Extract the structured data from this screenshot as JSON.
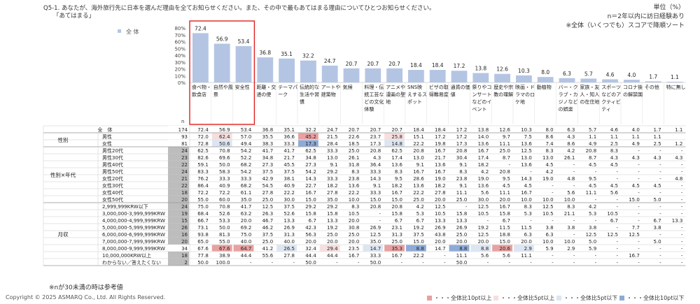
{
  "question": "Q5-1. あなたが、海外旅行先に日本を選んだ理由を全てお知らせください。また、その中で最もあてはまる理由についてひとつお知らせください。",
  "question_sub": "「あてはまる」",
  "note_lines": [
    "単位（%）",
    "n＝2年以内に訪日経験あり",
    "※全体（いくつでも）スコアで降順ソート"
  ],
  "footnote": "※nが30未満の時は参考値",
  "copyright": "Copyright © 2025 ASMARQ Co., Ltd. All Rights Reserved.",
  "legend": [
    {
      "label": "・・・全体比10pt以上",
      "color": "#e8a0a0"
    },
    {
      "label": "・・・全体比5pt以上",
      "color": "#f7dede"
    },
    {
      "label": "・・・全体比5pt以下",
      "color": "#dce6f2"
    },
    {
      "label": "・・・全体比10pt以下",
      "color": "#8eaad6"
    }
  ],
  "n_label": "n",
  "chart_data": {
    "type": "bar",
    "legend_label": "全 体",
    "yticks": [
      "80%",
      "70%",
      "60%",
      "50%",
      "40%",
      "30%",
      "20%",
      "10%",
      "0%"
    ],
    "ylim": [
      0,
      80
    ],
    "categories": [
      "食べ物・飲食店",
      "自然や風景",
      "安全性",
      "距離・交通の便",
      "テーマパーク",
      "伝統的な生活や習慣",
      "アートや建築物",
      "気候",
      "料理・伝統工芸などの文化体験",
      "アニメや漫画の聖地",
      "SNS映えするスポット",
      "ビザの取得難易度",
      "通貨の価値",
      "祭りやコンサートなどのイベント",
      "歴史や宗教の理解",
      "映画・ドラマのロケ地",
      "動植物",
      "バー・クラブ・カジノなどの娯楽",
      "家族・友人・知人の在住地",
      "スポーツなどのアクティビティ",
      "コロナ後の解禁国",
      "その他",
      "特に無し"
    ],
    "values": [
      72.4,
      56.9,
      53.4,
      36.8,
      35.1,
      32.2,
      24.7,
      20.7,
      20.7,
      20.7,
      18.4,
      18.4,
      17.2,
      13.8,
      12.6,
      10.3,
      8.0,
      6.3,
      5.7,
      4.6,
      4.0,
      1.7,
      1.1
    ],
    "highlighted_top": 3
  },
  "table": {
    "total_label": "全　体",
    "total_n": "174",
    "total_values": [
      "72.4",
      "56.9",
      "53.4",
      "36.8",
      "35.1",
      "32.2",
      "24.7",
      "20.7",
      "20.7",
      "20.7",
      "18.4",
      "18.4",
      "17.2",
      "13.8",
      "12.6",
      "10.3",
      "8.0",
      "6.3",
      "5.7",
      "4.6",
      "4.0",
      "1.7",
      "1.1"
    ],
    "groups": [
      {
        "label": "性別",
        "rows": [
          {
            "label": "男性",
            "n": "93",
            "values": [
              "72.0",
              "62.4",
              "57.0",
              "35.5",
              "36.6",
              "45.2",
              "21.5",
              "22.6",
              "23.7",
              "25.8",
              "15.1",
              "17.2",
              "17.2",
              "14.0",
              "9.7",
              "7.5",
              "8.6",
              "4.3",
              "1.1",
              "1.1",
              "1.1",
              "1.1",
              ""
            ],
            "shade": [
              "",
              "p",
              "",
              "",
              "",
              "r",
              "",
              "",
              "",
              "p",
              "",
              "",
              "",
              "",
              "",
              "",
              "",
              "",
              "",
              "",
              "",
              "",
              ""
            ]
          },
          {
            "label": "女性",
            "n": "81",
            "values": [
              "72.8",
              "50.6",
              "49.4",
              "38.3",
              "33.3",
              "17.3",
              "28.4",
              "18.5",
              "17.3",
              "14.8",
              "22.2",
              "19.8",
              "17.3",
              "13.6",
              "11.1",
              "13.6",
              "7.4",
              "8.6",
              "4.9",
              "2.5",
              "4.9",
              "2.5",
              "1.2"
            ],
            "shade": [
              "",
              "l",
              "",
              "",
              "",
              "b",
              "",
              "",
              "",
              "l",
              "",
              "",
              "",
              "",
              "",
              "",
              "",
              "",
              "",
              "",
              "",
              "",
              ""
            ]
          }
        ]
      },
      {
        "label": "性別×年代",
        "rows": [
          {
            "label": "男性20代",
            "n": "24",
            "values": [
              "62.5",
              "70.8",
              "54.2",
              "41.7",
              "41.7",
              "62.5",
              "33.3",
              "25.0",
              "20.8",
              "62.5",
              "20.8",
              "16.7",
              "20.8",
              "16.7",
              "25.0",
              "12.5",
              "8.3",
              "4.2",
              "20.8",
              "8.3",
              "-",
              "-",
              "-"
            ]
          },
          {
            "label": "男性30代",
            "n": "23",
            "values": [
              "82.6",
              "69.6",
              "52.2",
              "34.8",
              "21.7",
              "34.8",
              "13.0",
              "26.1",
              "4.3",
              "17.4",
              "13.0",
              "21.7",
              "30.4",
              "17.4",
              "8.7",
              "13.0",
              "13.0",
              "26.1",
              "8.7",
              "4.3",
              "4.3",
              "4.3",
              "4.3"
            ]
          },
          {
            "label": "男性40代",
            "n": "22",
            "values": [
              "59.1",
              "50.0",
              "68.2",
              "27.3",
              "45.5",
              "27.3",
              "9.1",
              "31.8",
              "36.4",
              "13.6",
              "9.1",
              "13.6",
              "9.1",
              "18.2",
              "-",
              "13.6",
              "4.5",
              "-",
              "4.5",
              "4.5",
              "-",
              "-",
              "-"
            ]
          },
          {
            "label": "男性50代",
            "n": "24",
            "values": [
              "83.3",
              "58.3",
              "54.2",
              "37.5",
              "37.5",
              "54.2",
              "29.2",
              "8.3",
              "33.3",
              "8.3",
              "16.7",
              "16.7",
              "8.3",
              "4.2",
              "20.8",
              "-",
              "4.2",
              "-",
              "-",
              "-",
              "-",
              "-",
              "-"
            ]
          },
          {
            "label": "女性20代",
            "n": "21",
            "values": [
              "76.2",
              "33.3",
              "33.3",
              "42.9",
              "38.1",
              "14.3",
              "33.3",
              "23.8",
              "14.3",
              "9.5",
              "28.6",
              "19.0",
              "23.8",
              "19.0",
              "9.5",
              "14.3",
              "19.0",
              "4.8",
              "9.5",
              "-",
              "-",
              "-",
              "4.8"
            ]
          },
          {
            "label": "女性30代",
            "n": "22",
            "values": [
              "86.4",
              "40.9",
              "68.2",
              "54.5",
              "40.9",
              "22.7",
              "18.2",
              "13.6",
              "9.1",
              "18.2",
              "13.6",
              "18.2",
              "9.1",
              "13.6",
              "4.5",
              "4.5",
              "-",
              "-",
              "4.5",
              "4.5",
              "4.5",
              "4.5",
              "-"
            ]
          },
          {
            "label": "女性40代",
            "n": "18",
            "values": [
              "72.2",
              "72.2",
              "61.1",
              "27.8",
              "22.2",
              "16.7",
              "27.8",
              "22.2",
              "33.3",
              "16.7",
              "22.2",
              "27.8",
              "11.1",
              "5.6",
              "11.1",
              "16.7",
              "-",
              "5.6",
              "11.1",
              "5.6",
              "-",
              "-",
              "-"
            ]
          },
          {
            "label": "女性50代",
            "n": "20",
            "values": [
              "55.0",
              "60.0",
              "35.0",
              "25.0",
              "30.0",
              "15.0",
              "35.0",
              "10.0",
              "15.0",
              "15.0",
              "25.0",
              "20.0",
              "25.0",
              "30.0",
              "20.0",
              "10.0",
              "10.0",
              "10.0",
              "-",
              "-",
              "15.0",
              "5.0",
              "-"
            ]
          }
        ]
      },
      {
        "label": "月収",
        "rows": [
          {
            "label": "2,999,999KRW以下",
            "n": "24",
            "values": [
              "75.0",
              "70.8",
              "41.7",
              "12.5",
              "37.5",
              "29.2",
              "29.2",
              "8.3",
              "20.8",
              "20.8",
              "4.2",
              "12.5",
              "-",
              "12.5",
              "16.7",
              "8.3",
              "12.5",
              "8.3",
              "4.2",
              "-",
              "-",
              "-",
              "-"
            ]
          },
          {
            "label": "3,000,000-3,999,999KRW",
            "n": "19",
            "values": [
              "68.4",
              "52.6",
              "63.2",
              "26.3",
              "52.6",
              "15.8",
              "15.8",
              "10.5",
              "-",
              "15.8",
              "5.3",
              "10.5",
              "15.8",
              "10.5",
              "15.8",
              "5.3",
              "10.5",
              "21.1",
              "5.3",
              "10.5",
              "-",
              "-",
              "-"
            ]
          },
          {
            "label": "4,000,000-4,999,999KRW",
            "n": "15",
            "values": [
              "66.7",
              "53.3",
              "20.0",
              "46.7",
              "13.3",
              "6.7",
              "13.3",
              "20.0",
              "-",
              "6.7",
              "6.7",
              "13.3",
              "13.3",
              "-",
              "6.7",
              "-",
              "-",
              "-",
              "-",
              "6.7",
              "-",
              "6.7",
              "13.3"
            ]
          },
          {
            "label": "5,000,000-5,999,999KRW",
            "n": "26",
            "values": [
              "73.1",
              "50.0",
              "69.2",
              "46.2",
              "26.9",
              "42.3",
              "19.2",
              "30.8",
              "26.9",
              "23.1",
              "19.2",
              "26.9",
              "26.9",
              "19.2",
              "11.5",
              "11.5",
              "3.8",
              "3.8",
              "3.8",
              "-",
              "7.7",
              "3.8",
              "-"
            ]
          },
          {
            "label": "6,000,000-6,999,999KRW",
            "n": "16",
            "values": [
              "93.8",
              "81.3",
              "75.0",
              "37.5",
              "31.3",
              "56.3",
              "25.0",
              "25.0",
              "12.5",
              "31.3",
              "37.5",
              "43.8",
              "25.0",
              "12.5",
              "18.8",
              "6.3",
              "6.3",
              "-",
              "12.5",
              "12.5",
              "12.5",
              "-",
              "-"
            ]
          },
          {
            "label": "7,000,000-7,999,999KRW",
            "n": "20",
            "values": [
              "65.0",
              "55.0",
              "40.0",
              "25.0",
              "40.0",
              "20.0",
              "20.0",
              "20.0",
              "35.0",
              "25.0",
              "15.0",
              "20.0",
              "20.0",
              "20.0",
              "15.0",
              "20.0",
              "10.0",
              "10.0",
              "5.0",
              "-",
              "-",
              "5.0",
              "-"
            ]
          },
          {
            "label": "8,000,000-9,999,999KRW",
            "n": "34",
            "values": [
              "67.6",
              "67.6",
              "64.7",
              "41.2",
              "26.5",
              "32.4",
              "29.4",
              "23.5",
              "14.7",
              "35.3",
              "8.8",
              "14.7",
              "8.8",
              "8.8",
              "20.6",
              "2.9",
              "5.9",
              "2.9",
              "5.9",
              "-",
              "-",
              "-",
              "-"
            ],
            "shade": [
              "",
              "r",
              "r",
              "",
              "l",
              "",
              "p",
              "",
              "l",
              "r",
              "b",
              "",
              "b",
              "l",
              "r",
              "l",
              "",
              "",
              "",
              "",
              "",
              "",
              ""
            ]
          },
          {
            "label": "10,000,000KRW以上",
            "n": "18",
            "values": [
              "77.8",
              "38.9",
              "44.4",
              "55.6",
              "27.8",
              "44.4",
              "44.4",
              "16.7",
              "33.3",
              "16.7",
              "22.2",
              "-",
              "11.1",
              "5.6",
              "5.6",
              "11.1",
              "-",
              "-",
              "-",
              "-",
              "16.7",
              "-",
              "-"
            ]
          },
          {
            "label": "わからない／答えたくない",
            "n": "2",
            "values": [
              "50.0",
              "100.0",
              "-",
              "-",
              "-",
              "50.0",
              "-",
              "-",
              "50.0",
              "-",
              "-",
              "-",
              "50.0",
              "-",
              "-",
              "-",
              "-",
              "-",
              "-",
              "-",
              "-",
              "-",
              "-"
            ]
          }
        ]
      }
    ]
  }
}
